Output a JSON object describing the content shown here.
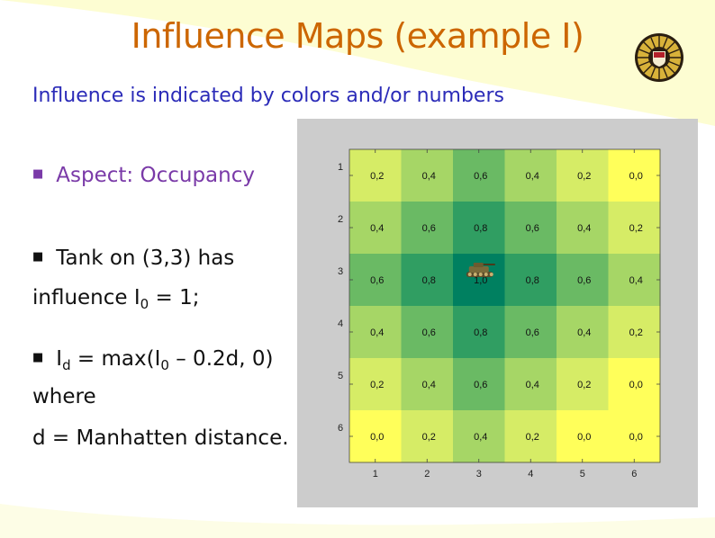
{
  "slide": {
    "title": "Influence Maps (example I)",
    "subtitle": "Influence is indicated by colors and/or numbers",
    "bullet_aspect": "Aspect: Occupancy",
    "tank_line1": "Tank on (3,3) has",
    "tank_line2_pre": "influence I",
    "tank_line2_sub": "0",
    "tank_line2_post": " = 1;",
    "formula_pre": "I",
    "formula_sub1": "d",
    "formula_mid": " = max(I",
    "formula_sub2": "0",
    "formula_post": " – 0.2d, 0)",
    "where": "where",
    "distance": "d = Manhatten distance.",
    "seal_icon": "university-seal-icon",
    "colors": {
      "title": "#cc6600",
      "subtitle": "#2b2bb8",
      "aspect": "#7a3aa8",
      "plot_bg": "#cccccc"
    }
  },
  "chart_data": {
    "type": "heatmap",
    "x_ticks": [
      "1",
      "2",
      "3",
      "4",
      "5",
      "6"
    ],
    "y_ticks": [
      "1",
      "2",
      "3",
      "4",
      "5",
      "6"
    ],
    "values": [
      [
        0.2,
        0.4,
        0.6,
        0.4,
        0.2,
        0.0
      ],
      [
        0.4,
        0.6,
        0.8,
        0.6,
        0.4,
        0.2
      ],
      [
        0.6,
        0.8,
        1.0,
        0.8,
        0.6,
        0.4
      ],
      [
        0.4,
        0.6,
        0.8,
        0.6,
        0.4,
        0.2
      ],
      [
        0.2,
        0.4,
        0.6,
        0.4,
        0.2,
        0.0
      ],
      [
        0.0,
        0.2,
        0.4,
        0.2,
        0.0,
        0.0
      ]
    ],
    "cell_labels": [
      [
        "0,2",
        "0,4",
        "0,6",
        "0,4",
        "0,2",
        "0,0"
      ],
      [
        "0,4",
        "0,6",
        "0,8",
        "0,6",
        "0,4",
        "0,2"
      ],
      [
        "0,6",
        "0,8",
        "1,0",
        "0,8",
        "0,6",
        "0,4"
      ],
      [
        "0,4",
        "0,6",
        "0,8",
        "0,6",
        "0,4",
        "0,2"
      ],
      [
        "0,2",
        "0,4",
        "0,6",
        "0,4",
        "0,2",
        "0,0"
      ],
      [
        "0,0",
        "0,2",
        "0,4",
        "0,2",
        "0,0",
        "0,0"
      ]
    ],
    "tank_position": [
      3,
      3
    ],
    "tank_icon": "tank-icon",
    "colormap": "yellow-to-green",
    "grid": false
  }
}
